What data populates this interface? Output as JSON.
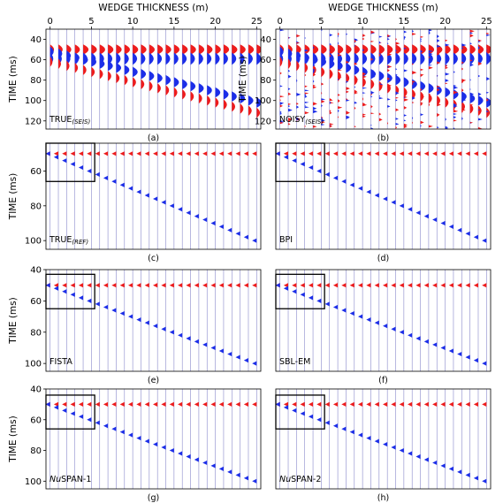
{
  "figure": {
    "xlabel_top": "WEDGE THICKNESS (m)",
    "ylabel": "TIME (ms)"
  },
  "chart_data": [
    {
      "id": "a",
      "type": "seismic-wiggle",
      "caption": "(a)",
      "label": "TRUE",
      "label_sub": "(SEIS)",
      "label_italic_prefix": "",
      "x_ticks": [
        0,
        5,
        10,
        15,
        20,
        25
      ],
      "y_ticks": [
        40,
        60,
        80,
        100,
        120
      ],
      "ylim": [
        30,
        128
      ],
      "xlim": [
        -0.5,
        25.5
      ],
      "traces": 26,
      "top_time": 50,
      "bottom_time_range": [
        50,
        100
      ],
      "noisy": false,
      "box": null
    },
    {
      "id": "b",
      "type": "seismic-wiggle",
      "caption": "(b)",
      "label": "NOISY",
      "label_sub": "(SEIS)",
      "label_italic_prefix": "",
      "x_ticks": [
        0,
        5,
        10,
        15,
        20,
        25
      ],
      "y_ticks": [
        40,
        60,
        80,
        100,
        120
      ],
      "ylim": [
        30,
        128
      ],
      "xlim": [
        -0.5,
        25.5
      ],
      "traces": 26,
      "top_time": 50,
      "bottom_time_range": [
        50,
        100
      ],
      "noisy": true,
      "box": null
    },
    {
      "id": "c",
      "type": "reflectivity",
      "caption": "(c)",
      "label": "TRUE",
      "label_sub": "(REF)",
      "label_italic_prefix": "",
      "x_ticks": [],
      "y_ticks": [
        60,
        80,
        100
      ],
      "ylim": [
        44,
        105
      ],
      "xlim": [
        -0.5,
        25.5
      ],
      "traces": 26,
      "top_time": 50,
      "bottom_time_range": [
        50,
        100
      ],
      "box": {
        "t0": 44,
        "t1": 66,
        "x0": -0.5,
        "x1": 5.4
      }
    },
    {
      "id": "d",
      "type": "reflectivity",
      "caption": "(d)",
      "label": "BPI",
      "label_sub": "",
      "label_italic_prefix": "",
      "x_ticks": [],
      "y_ticks": [],
      "ylim": [
        44,
        105
      ],
      "xlim": [
        -0.5,
        25.5
      ],
      "traces": 26,
      "top_time": 50,
      "bottom_time_range": [
        50,
        100
      ],
      "box": {
        "t0": 44,
        "t1": 66,
        "x0": -0.5,
        "x1": 5.4
      }
    },
    {
      "id": "e",
      "type": "reflectivity",
      "caption": "(e)",
      "label": "FISTA",
      "label_sub": "",
      "label_italic_prefix": "",
      "x_ticks": [],
      "y_ticks": [
        40,
        60,
        80,
        100
      ],
      "ylim": [
        40,
        105
      ],
      "xlim": [
        -0.5,
        25.5
      ],
      "traces": 26,
      "top_time": 50,
      "bottom_time_range": [
        50,
        100
      ],
      "box": {
        "t0": 43,
        "t1": 65,
        "x0": -0.5,
        "x1": 5.4
      }
    },
    {
      "id": "f",
      "type": "reflectivity",
      "caption": "(f)",
      "label": "SBL-EM",
      "label_sub": "",
      "label_italic_prefix": "",
      "x_ticks": [],
      "y_ticks": [],
      "ylim": [
        40,
        105
      ],
      "xlim": [
        -0.5,
        25.5
      ],
      "traces": 26,
      "top_time": 50,
      "bottom_time_range": [
        50,
        100
      ],
      "box": {
        "t0": 43,
        "t1": 65,
        "x0": -0.5,
        "x1": 5.4
      }
    },
    {
      "id": "g",
      "type": "reflectivity",
      "caption": "(g)",
      "label": "SPAN-1",
      "label_sub": "",
      "label_italic_prefix": "Nu",
      "x_ticks": [],
      "y_ticks": [
        40,
        60,
        80,
        100
      ],
      "ylim": [
        40,
        105
      ],
      "xlim": [
        -0.5,
        25.5
      ],
      "traces": 26,
      "top_time": 50,
      "bottom_time_range": [
        50,
        100
      ],
      "box": {
        "t0": 44,
        "t1": 66,
        "x0": -0.5,
        "x1": 5.4
      }
    },
    {
      "id": "h",
      "type": "reflectivity",
      "caption": "(h)",
      "label": "SPAN-2",
      "label_sub": "",
      "label_italic_prefix": "Nu",
      "x_ticks": [],
      "y_ticks": [],
      "ylim": [
        40,
        105
      ],
      "xlim": [
        -0.5,
        25.5
      ],
      "traces": 26,
      "top_time": 50,
      "bottom_time_range": [
        50,
        100
      ],
      "box": {
        "t0": 44,
        "t1": 66,
        "x0": -0.5,
        "x1": 5.4
      }
    }
  ],
  "colors": {
    "positive": "#ee1c1c",
    "negative": "#1c2ee8",
    "trace_line": "#8888cc",
    "box": "#000000"
  }
}
